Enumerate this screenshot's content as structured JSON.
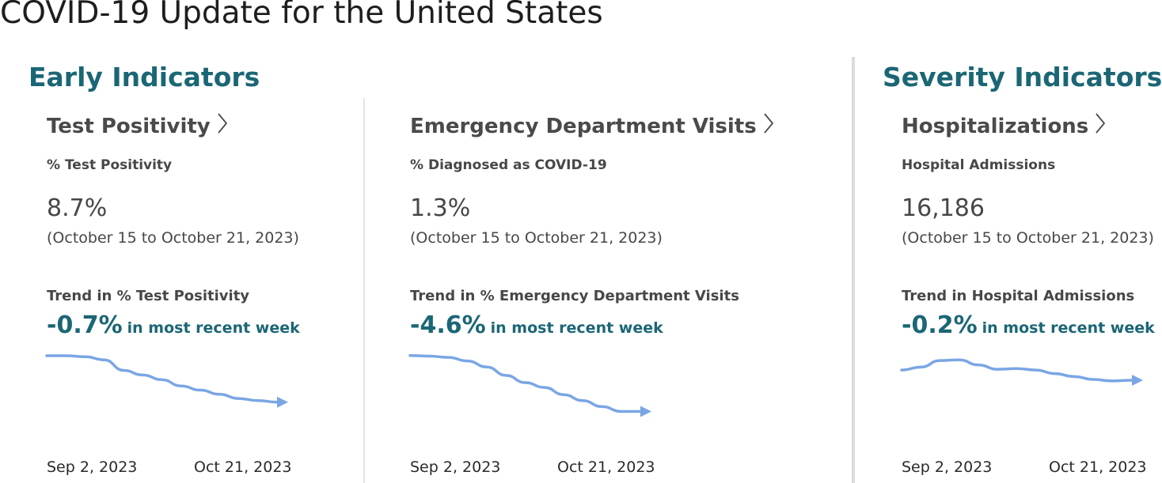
{
  "page": {
    "title": "COVID-19 Update for the United States"
  },
  "sections": {
    "early": {
      "title": "Early Indicators"
    },
    "severity": {
      "title": "Severity Indicators"
    }
  },
  "cards": [
    {
      "title": "Test Positivity",
      "sub_label": "% Test Positivity",
      "value": "8.7%",
      "date_range": "(October 15 to October 21, 2023)",
      "trend_label": "Trend in % Test Positivity",
      "trend_pct": "-0.7%",
      "trend_tail": "in most recent week",
      "axis_start": "Sep 2, 2023",
      "axis_end": "Oct 21, 2023",
      "sparkline_shape": [
        0.06,
        0.06,
        0.08,
        0.14,
        0.34,
        0.43,
        0.52,
        0.64,
        0.72,
        0.8,
        0.88,
        0.92,
        0.95
      ]
    },
    {
      "title": "Emergency Department Visits",
      "sub_label": "% Diagnosed as COVID-19",
      "value": "1.3%",
      "date_range": "(October 15 to October 21, 2023)",
      "trend_label": "Trend in % Emergency Department Visits",
      "trend_pct": "-4.6%",
      "trend_tail": "in most recent week",
      "axis_start": "Sep 2, 2023",
      "axis_end": "Oct 21, 2023",
      "sparkline_shape": [
        0.05,
        0.06,
        0.08,
        0.14,
        0.24,
        0.38,
        0.5,
        0.58,
        0.7,
        0.8,
        0.9,
        0.98,
        0.98
      ]
    },
    {
      "title": "Hospitalizations",
      "sub_label": "Hospital Admissions",
      "value": "16,186",
      "date_range": "(October 15 to October 21, 2023)",
      "trend_label": "Trend in Hospital Admissions",
      "trend_pct": "-0.2%",
      "trend_tail": "in most recent week",
      "axis_start": "Sep 2, 2023",
      "axis_end": "Oct 21, 2023",
      "sparkline_shape": [
        0.48,
        0.4,
        0.22,
        0.2,
        0.34,
        0.46,
        0.44,
        0.48,
        0.58,
        0.66,
        0.74,
        0.78,
        0.76
      ]
    }
  ],
  "colors": {
    "accent_teal": "#1b6675",
    "sparkline": "#7aa6e4",
    "divider": "#cfcfcf",
    "divider_strong": "#e2e2e2"
  },
  "icons": {
    "card_title_chevron": "chevron-right-icon",
    "trend_arrow": "arrow-right-icon"
  }
}
